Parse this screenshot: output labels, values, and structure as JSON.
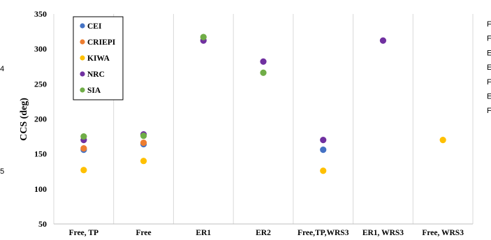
{
  "chart_data": {
    "type": "scatter",
    "ylabel": "CCS (deg)",
    "xlabel": "",
    "title": "",
    "ylim": [
      50,
      350
    ],
    "yticks": [
      50,
      100,
      150,
      200,
      250,
      300,
      350
    ],
    "categories": [
      "Free, TP",
      "Free",
      "ER1",
      "ER2",
      "Free,TP,WRS3",
      "ER1, WRS3",
      "Free, WRS3"
    ],
    "grid": "vertical",
    "legend_position": "top-left",
    "series": [
      {
        "name": "CEI",
        "color": "#4472C4",
        "values": [
          156,
          164,
          null,
          null,
          156,
          null,
          null
        ]
      },
      {
        "name": "CRIEPI",
        "color": "#ED7D31",
        "values": [
          158,
          166,
          null,
          null,
          null,
          null,
          null
        ]
      },
      {
        "name": "KIWA",
        "color": "#FFC000",
        "values": [
          127,
          140,
          null,
          null,
          126,
          null,
          170
        ]
      },
      {
        "name": "NRC",
        "color": "#7030A0",
        "values": [
          170,
          178,
          312,
          282,
          170,
          312,
          null
        ]
      },
      {
        "name": "SIA",
        "color": "#70AD47",
        "values": [
          175,
          176,
          317,
          266,
          null,
          null,
          null
        ]
      }
    ]
  },
  "edge_fragments": {
    "left": [
      "4",
      "5"
    ],
    "right": [
      "F",
      "F",
      "E",
      "E",
      "F",
      "E",
      "F"
    ]
  }
}
